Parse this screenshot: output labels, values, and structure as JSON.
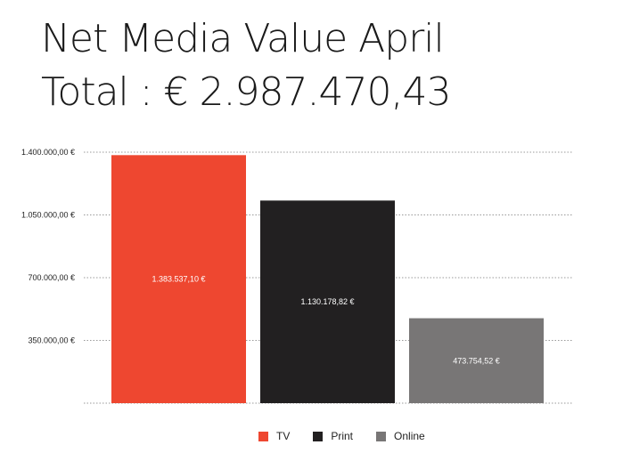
{
  "title_line1": "Net Media Value April",
  "title_line2": "Total : € 2.987.470,43",
  "chart_data": {
    "type": "bar",
    "categories": [
      "TV",
      "Print",
      "Online"
    ],
    "values": [
      1383537.1,
      1130178.82,
      473754.52
    ],
    "value_labels": [
      "1.383.537,10 €",
      "1.130.178,82 €",
      "473.754,52 €"
    ],
    "colors": [
      "#ee4730",
      "#222021",
      "#787676"
    ],
    "ylim": [
      0,
      1400000
    ],
    "yticks": [
      350000,
      700000,
      1050000,
      1400000
    ],
    "ytick_labels": [
      "350.000,00 €",
      "700.000,00 €",
      "1.050.000,00 €",
      "1.400.000,00 €"
    ],
    "grid": true,
    "legend_position": "bottom-center"
  }
}
